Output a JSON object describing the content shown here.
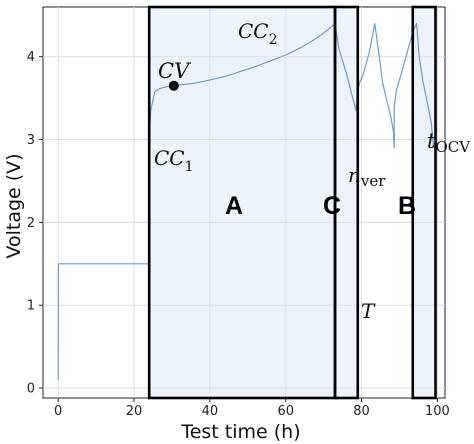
{
  "chart_data": {
    "type": "line",
    "xlabel": "Test time (h)",
    "ylabel": "Voltage (V)",
    "xlim": [
      -4,
      102
    ],
    "ylim": [
      -0.12,
      4.6
    ],
    "xticks": [
      "0",
      "20",
      "40",
      "60",
      "80",
      "100"
    ],
    "yticks": [
      "0",
      "1",
      "2",
      "3",
      "4"
    ],
    "xtick_values": [
      0,
      20,
      40,
      60,
      80,
      100
    ],
    "ytick_values": [
      0,
      1,
      2,
      3,
      4
    ],
    "grid": true,
    "line_color": "#6a9ec9",
    "series": [
      {
        "x": [
          0,
          0.05,
          24.0,
          24.0,
          24.4,
          25.5,
          27.0,
          29.0,
          30.5,
          32,
          36,
          40,
          44,
          48,
          52,
          56,
          60,
          64,
          68,
          71,
          73
        ],
        "y": [
          0.1,
          1.5,
          1.5,
          2.95,
          3.35,
          3.58,
          3.62,
          3.64,
          3.65,
          3.66,
          3.68,
          3.72,
          3.76,
          3.82,
          3.88,
          3.95,
          4.02,
          4.11,
          4.22,
          4.32,
          4.4
        ]
      },
      {
        "x": [
          73,
          74,
          76,
          78.5,
          79,
          79.6,
          80.5,
          82,
          83.5,
          84.8,
          85.5,
          86.5,
          87.6,
          88.4,
          88.6,
          88.6,
          89.2,
          90.5,
          92.0,
          93.5,
          94.5,
          95.2,
          96.2,
          97.3,
          98.4,
          99.0
        ],
        "y": [
          4.4,
          4.1,
          3.8,
          3.35,
          3.6,
          3.7,
          3.8,
          4.05,
          4.4,
          3.95,
          3.7,
          3.5,
          3.3,
          3.1,
          2.9,
          3.4,
          3.6,
          3.8,
          4.05,
          4.3,
          4.4,
          4.0,
          3.7,
          3.45,
          3.2,
          2.9
        ]
      }
    ],
    "regions": [
      {
        "label": "A",
        "x0": 24,
        "x1": 73
      },
      {
        "label": "C",
        "x0": 73,
        "x1": 79
      },
      {
        "label": "B",
        "x0": 93.5,
        "x1": 99.5
      }
    ],
    "marker": {
      "x": 30.5,
      "y": 3.65
    },
    "annotations": {
      "cv": "CV",
      "cc1_base": "CC",
      "cc1_sub": "1",
      "cc2_base": "CC",
      "cc2_sub": "2",
      "nver_base": "n",
      "nver_sub": "ver",
      "tocv_base": "t",
      "tocv_sub": "OCV",
      "temp": "T"
    }
  }
}
